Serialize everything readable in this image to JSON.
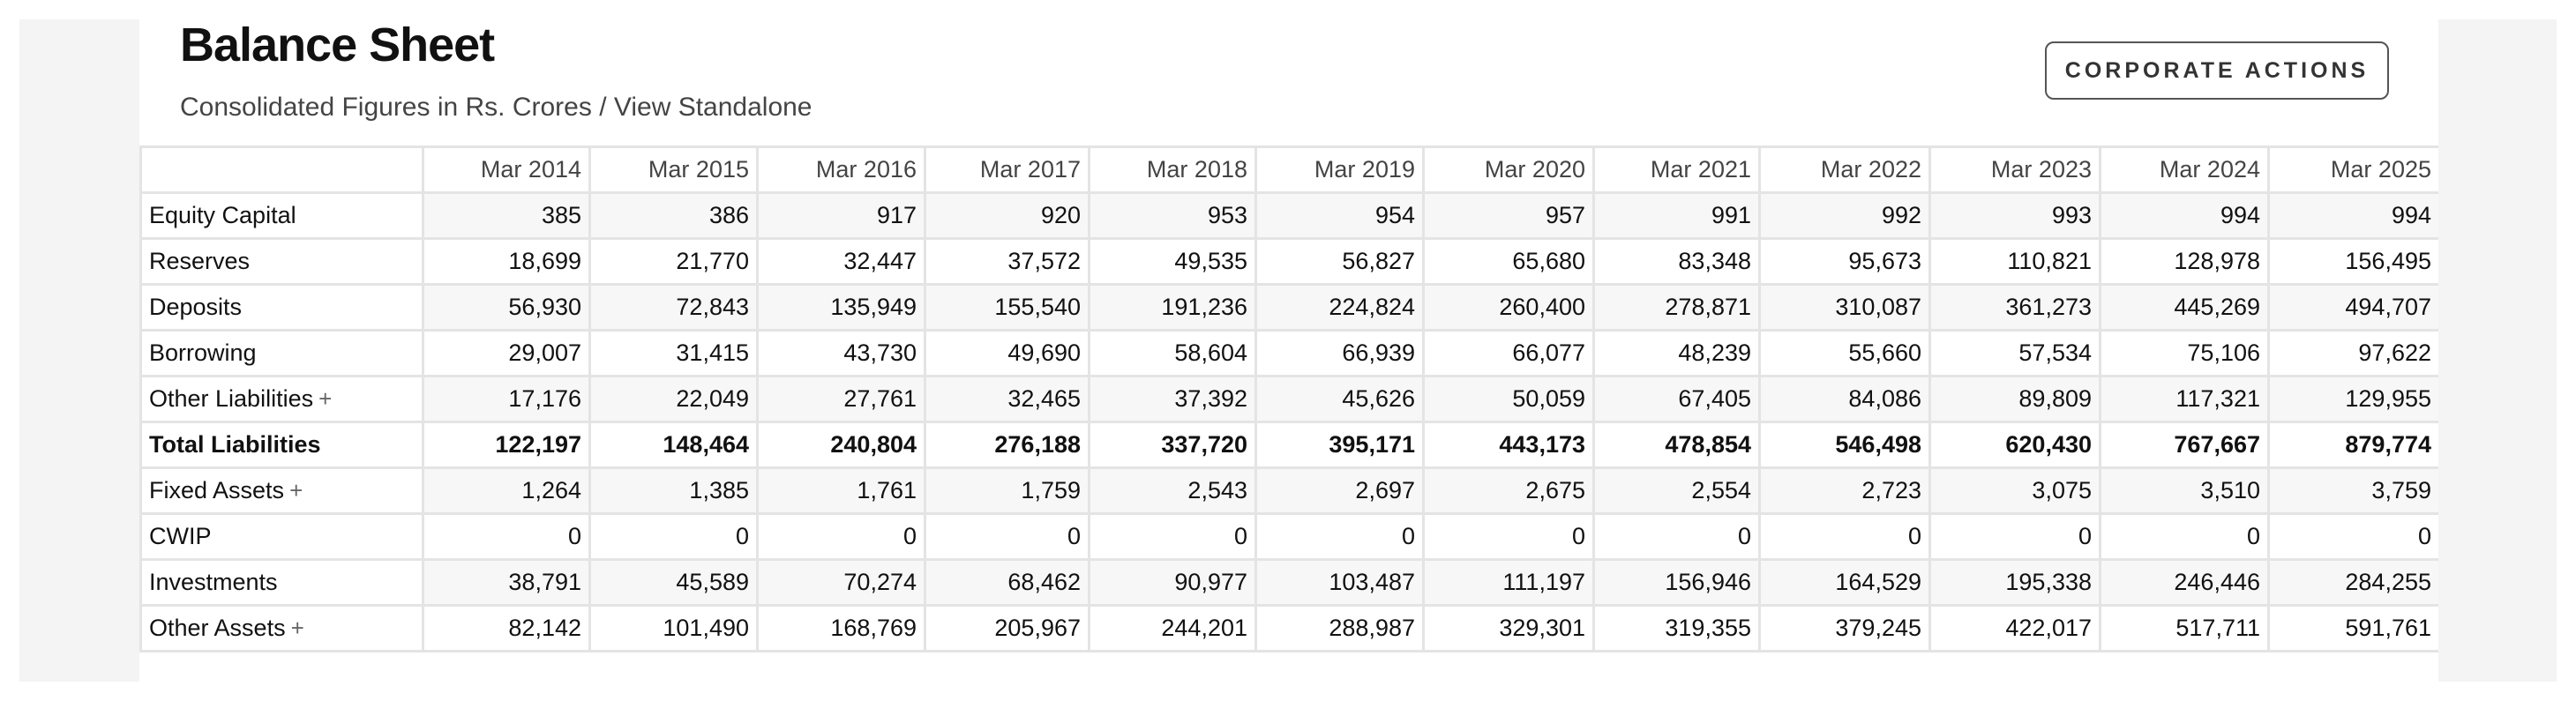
{
  "header": {
    "title": "Balance Sheet",
    "subtitle_prefix": "Consolidated Figures in Rs. Crores / ",
    "subtitle_link": "View Standalone",
    "corporate_actions_label": "CORPORATE ACTIONS"
  },
  "table": {
    "columns": [
      "Mar 2014",
      "Mar 2015",
      "Mar 2016",
      "Mar 2017",
      "Mar 2018",
      "Mar 2019",
      "Mar 2020",
      "Mar 2021",
      "Mar 2022",
      "Mar 2023",
      "Mar 2024",
      "Mar 2025"
    ],
    "rows": [
      {
        "label": "Equity Capital",
        "expandable": false,
        "bold": false,
        "values": [
          "385",
          "386",
          "917",
          "920",
          "953",
          "954",
          "957",
          "991",
          "992",
          "993",
          "994",
          "994"
        ]
      },
      {
        "label": "Reserves",
        "expandable": false,
        "bold": false,
        "values": [
          "18,699",
          "21,770",
          "32,447",
          "37,572",
          "49,535",
          "56,827",
          "65,680",
          "83,348",
          "95,673",
          "110,821",
          "128,978",
          "156,495"
        ]
      },
      {
        "label": "Deposits",
        "expandable": false,
        "bold": false,
        "values": [
          "56,930",
          "72,843",
          "135,949",
          "155,540",
          "191,236",
          "224,824",
          "260,400",
          "278,871",
          "310,087",
          "361,273",
          "445,269",
          "494,707"
        ]
      },
      {
        "label": "Borrowing",
        "expandable": false,
        "bold": false,
        "values": [
          "29,007",
          "31,415",
          "43,730",
          "49,690",
          "58,604",
          "66,939",
          "66,077",
          "48,239",
          "55,660",
          "57,534",
          "75,106",
          "97,622"
        ]
      },
      {
        "label": "Other Liabilities",
        "expandable": true,
        "bold": false,
        "values": [
          "17,176",
          "22,049",
          "27,761",
          "32,465",
          "37,392",
          "45,626",
          "50,059",
          "67,405",
          "84,086",
          "89,809",
          "117,321",
          "129,955"
        ]
      },
      {
        "label": "Total Liabilities",
        "expandable": false,
        "bold": true,
        "values": [
          "122,197",
          "148,464",
          "240,804",
          "276,188",
          "337,720",
          "395,171",
          "443,173",
          "478,854",
          "546,498",
          "620,430",
          "767,667",
          "879,774"
        ]
      },
      {
        "label": "Fixed Assets",
        "expandable": true,
        "bold": false,
        "values": [
          "1,264",
          "1,385",
          "1,761",
          "1,759",
          "2,543",
          "2,697",
          "2,675",
          "2,554",
          "2,723",
          "3,075",
          "3,510",
          "3,759"
        ]
      },
      {
        "label": "CWIP",
        "expandable": false,
        "bold": false,
        "values": [
          "0",
          "0",
          "0",
          "0",
          "0",
          "0",
          "0",
          "0",
          "0",
          "0",
          "0",
          "0"
        ]
      },
      {
        "label": "Investments",
        "expandable": false,
        "bold": false,
        "values": [
          "38,791",
          "45,589",
          "70,274",
          "68,462",
          "90,977",
          "103,487",
          "111,197",
          "156,946",
          "164,529",
          "195,338",
          "246,446",
          "284,255"
        ]
      },
      {
        "label": "Other Assets",
        "expandable": true,
        "bold": false,
        "values": [
          "82,142",
          "101,490",
          "168,769",
          "205,967",
          "244,201",
          "288,987",
          "329,301",
          "319,355",
          "379,245",
          "422,017",
          "517,711",
          "591,761"
        ]
      }
    ],
    "expand_symbol": "+"
  }
}
